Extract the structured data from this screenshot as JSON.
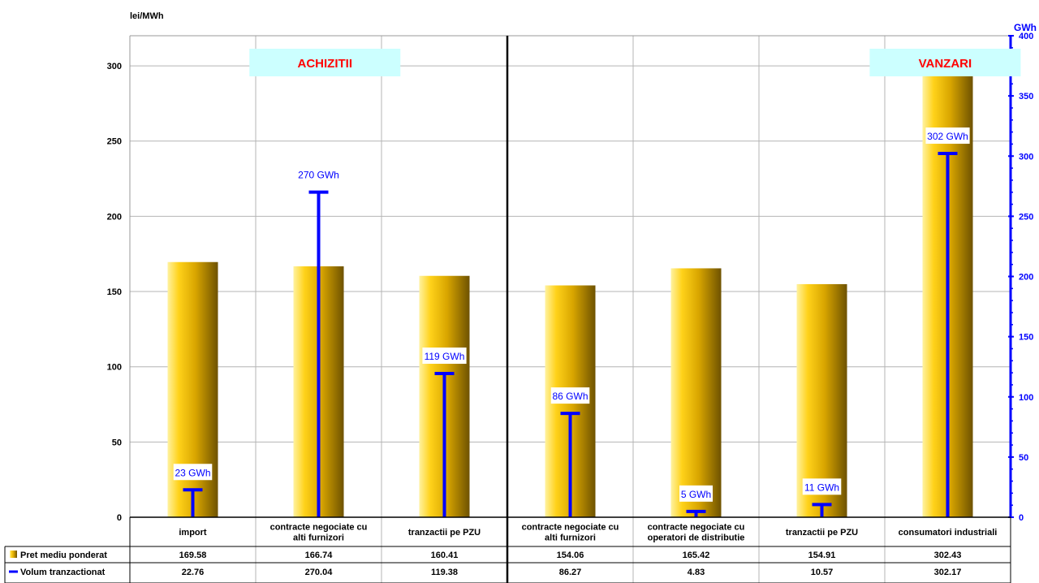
{
  "chart_data": {
    "type": "bar",
    "y_left_label": "lei/MWh",
    "y_right_label": "GWh",
    "y_left_range": [
      0,
      320
    ],
    "y_left_ticks": [
      "0",
      "50",
      "100",
      "150",
      "200",
      "250",
      "300"
    ],
    "y_right_range": [
      0,
      400
    ],
    "y_right_ticks": [
      "0",
      "50",
      "100",
      "150",
      "200",
      "250",
      "300",
      "350",
      "400"
    ],
    "groups": [
      {
        "label": "ACHIZITII",
        "bg": "#ccffff",
        "color": "#ff0000"
      },
      {
        "label": "VANZARI",
        "bg": "#ccffff",
        "color": "#ff0000"
      }
    ],
    "categories": [
      [
        "import"
      ],
      [
        "contracte negociate cu",
        "alti furnizori"
      ],
      [
        "tranzactii pe PZU"
      ],
      [
        "contracte negociate cu",
        "alti furnizori"
      ],
      [
        "contracte negociate cu",
        "operatori de distributie"
      ],
      [
        "tranzactii pe PZU"
      ],
      [
        "consumatori industriali"
      ]
    ],
    "series": [
      {
        "name": "Pret mediu ponderat",
        "axis": "left",
        "color": "#e6b800",
        "values": [
          169.58,
          166.74,
          160.41,
          154.06,
          165.42,
          154.91,
          302.43
        ],
        "table_values": [
          "169.58",
          "166.74",
          "160.41",
          "154.06",
          "165.42",
          "154.91",
          "302.43"
        ]
      },
      {
        "name": "Volum tranzactionat",
        "axis": "right",
        "color": "#0000ff",
        "values": [
          22.76,
          270.04,
          119.38,
          86.27,
          4.83,
          10.57,
          302.17
        ],
        "table_values": [
          "22.76",
          "270.04",
          "119.38",
          "86.27",
          "4.83",
          "10.57",
          "302.17"
        ],
        "data_labels": [
          "23 GWh",
          "270 GWh",
          "119 GWh",
          "86 GWh",
          "5 GWh",
          "11 GWh",
          "302 GWh"
        ]
      }
    ],
    "grid": true
  }
}
